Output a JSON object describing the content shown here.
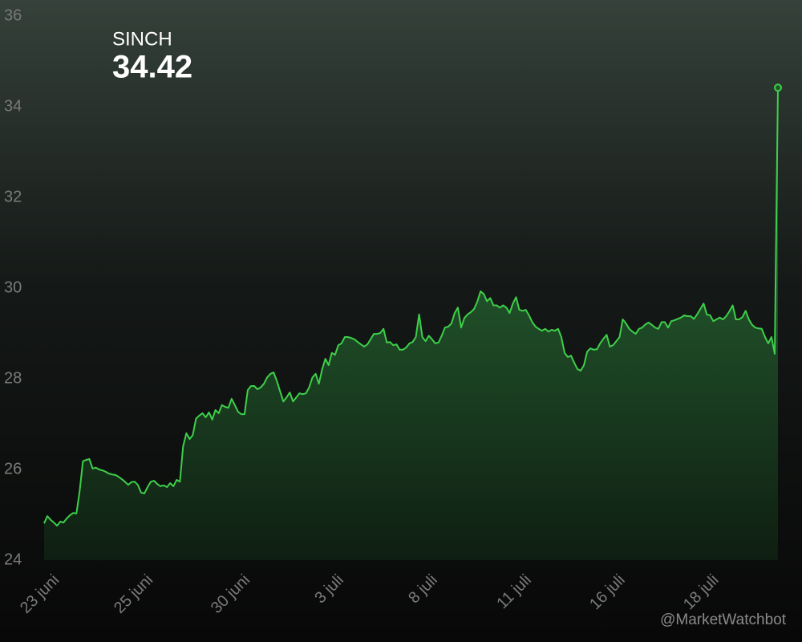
{
  "chart_data": {
    "type": "area",
    "title": "SINCH",
    "annotation": "@MarketWatchbot",
    "color": "#3ecf4a",
    "ylim": [
      24,
      36
    ],
    "yticks": [
      24,
      26,
      28,
      30,
      32,
      34,
      36
    ],
    "grid": false,
    "categories": [
      "23 juni",
      null,
      null,
      null,
      null,
      null,
      null,
      null,
      null,
      null,
      null,
      null,
      null,
      null,
      null,
      null,
      null,
      null,
      null,
      null,
      null,
      null,
      null,
      null,
      null,
      null,
      null,
      null,
      null,
      "25 juni",
      null,
      null,
      null,
      null,
      null,
      null,
      null,
      null,
      null,
      null,
      null,
      null,
      null,
      null,
      null,
      null,
      null,
      null,
      null,
      null,
      null,
      null,
      null,
      null,
      null,
      null,
      null,
      null,
      null,
      "30 juni",
      null,
      null,
      null,
      null,
      null,
      null,
      null,
      null,
      null,
      null,
      null,
      null,
      null,
      null,
      null,
      null,
      null,
      null,
      null,
      null,
      null,
      null,
      null,
      null,
      null,
      null,
      null,
      null,
      "3 juli",
      null,
      null,
      null,
      null,
      null,
      null,
      null,
      null,
      null,
      null,
      null,
      null,
      null,
      null,
      null,
      null,
      null,
      null,
      null,
      null,
      null,
      null,
      null,
      null,
      null,
      null,
      null,
      null,
      "8 juli",
      null,
      null,
      null,
      null,
      null,
      null,
      null,
      null,
      null,
      null,
      null,
      null,
      null,
      null,
      null,
      null,
      null,
      null,
      null,
      null,
      null,
      null,
      null,
      null,
      null,
      null,
      null,
      null,
      "11 juli",
      null,
      null,
      null,
      null,
      null,
      null,
      null,
      null,
      null,
      null,
      null,
      null,
      null,
      null,
      null,
      null,
      null,
      null,
      null,
      null,
      null,
      null,
      null,
      null,
      null,
      null,
      null,
      null,
      "16 juli",
      null,
      null,
      null,
      null,
      null,
      null,
      null,
      null,
      null,
      null,
      null,
      null,
      null,
      null,
      null,
      null,
      null,
      null,
      null,
      null,
      null,
      null,
      null,
      null,
      null,
      null,
      null,
      null,
      "18 juli",
      null,
      null,
      null,
      null,
      null,
      null,
      null,
      null,
      null,
      null,
      null,
      null,
      null,
      null,
      null,
      null,
      null,
      null,
      null,
      null,
      null,
      null,
      null
    ],
    "values": [
      24.81,
      24.97,
      24.89,
      24.83,
      24.76,
      24.85,
      24.83,
      24.92,
      24.99,
      25.04,
      25.03,
      25.52,
      26.18,
      26.21,
      26.23,
      26.02,
      26.04,
      26.0,
      25.98,
      25.95,
      25.91,
      25.89,
      25.88,
      25.84,
      25.79,
      25.73,
      25.66,
      25.72,
      25.73,
      25.66,
      25.49,
      25.47,
      25.61,
      25.73,
      25.75,
      25.68,
      25.63,
      25.65,
      25.61,
      25.7,
      25.63,
      25.77,
      25.73,
      26.51,
      26.8,
      26.67,
      26.76,
      27.12,
      27.19,
      27.24,
      27.15,
      27.26,
      27.1,
      27.31,
      27.24,
      27.42,
      27.38,
      27.36,
      27.56,
      27.42,
      27.27,
      27.22,
      27.22,
      27.75,
      27.84,
      27.84,
      27.77,
      27.81,
      27.89,
      28.03,
      28.11,
      28.14,
      27.95,
      27.72,
      27.5,
      27.59,
      27.7,
      27.5,
      27.59,
      27.68,
      27.66,
      27.68,
      27.81,
      28.03,
      28.11,
      27.89,
      28.21,
      28.44,
      28.3,
      28.57,
      28.53,
      28.74,
      28.78,
      28.92,
      28.92,
      28.9,
      28.87,
      28.81,
      28.76,
      28.71,
      28.76,
      28.87,
      28.99,
      28.99,
      29.01,
      29.1,
      28.8,
      28.81,
      28.74,
      28.76,
      28.64,
      28.64,
      28.69,
      28.78,
      28.81,
      28.92,
      29.42,
      28.92,
      28.83,
      28.95,
      28.87,
      28.78,
      28.8,
      28.95,
      29.13,
      29.15,
      29.22,
      29.45,
      29.57,
      29.13,
      29.34,
      29.42,
      29.47,
      29.54,
      29.7,
      29.93,
      29.87,
      29.71,
      29.78,
      29.62,
      29.62,
      29.57,
      29.62,
      29.57,
      29.45,
      29.66,
      29.8,
      29.52,
      29.5,
      29.52,
      29.4,
      29.25,
      29.15,
      29.1,
      29.06,
      29.1,
      29.04,
      29.08,
      29.06,
      29.1,
      28.92,
      28.57,
      28.48,
      28.51,
      28.35,
      28.21,
      28.18,
      28.3,
      28.6,
      28.67,
      28.64,
      28.65,
      28.78,
      28.88,
      28.97,
      28.71,
      28.74,
      28.83,
      28.92,
      29.31,
      29.22,
      29.1,
      29.04,
      28.99,
      29.1,
      29.13,
      29.2,
      29.24,
      29.19,
      29.13,
      29.1,
      29.25,
      29.25,
      29.13,
      29.27,
      29.29,
      29.32,
      29.35,
      29.4,
      29.38,
      29.38,
      29.32,
      29.42,
      29.54,
      29.66,
      29.42,
      29.4,
      29.27,
      29.31,
      29.35,
      29.31,
      29.38,
      29.49,
      29.62,
      29.31,
      29.31,
      29.36,
      29.5,
      29.31,
      29.19,
      29.13,
      29.11,
      29.1,
      28.92,
      28.78,
      28.92,
      28.55,
      34.42
    ]
  }
}
